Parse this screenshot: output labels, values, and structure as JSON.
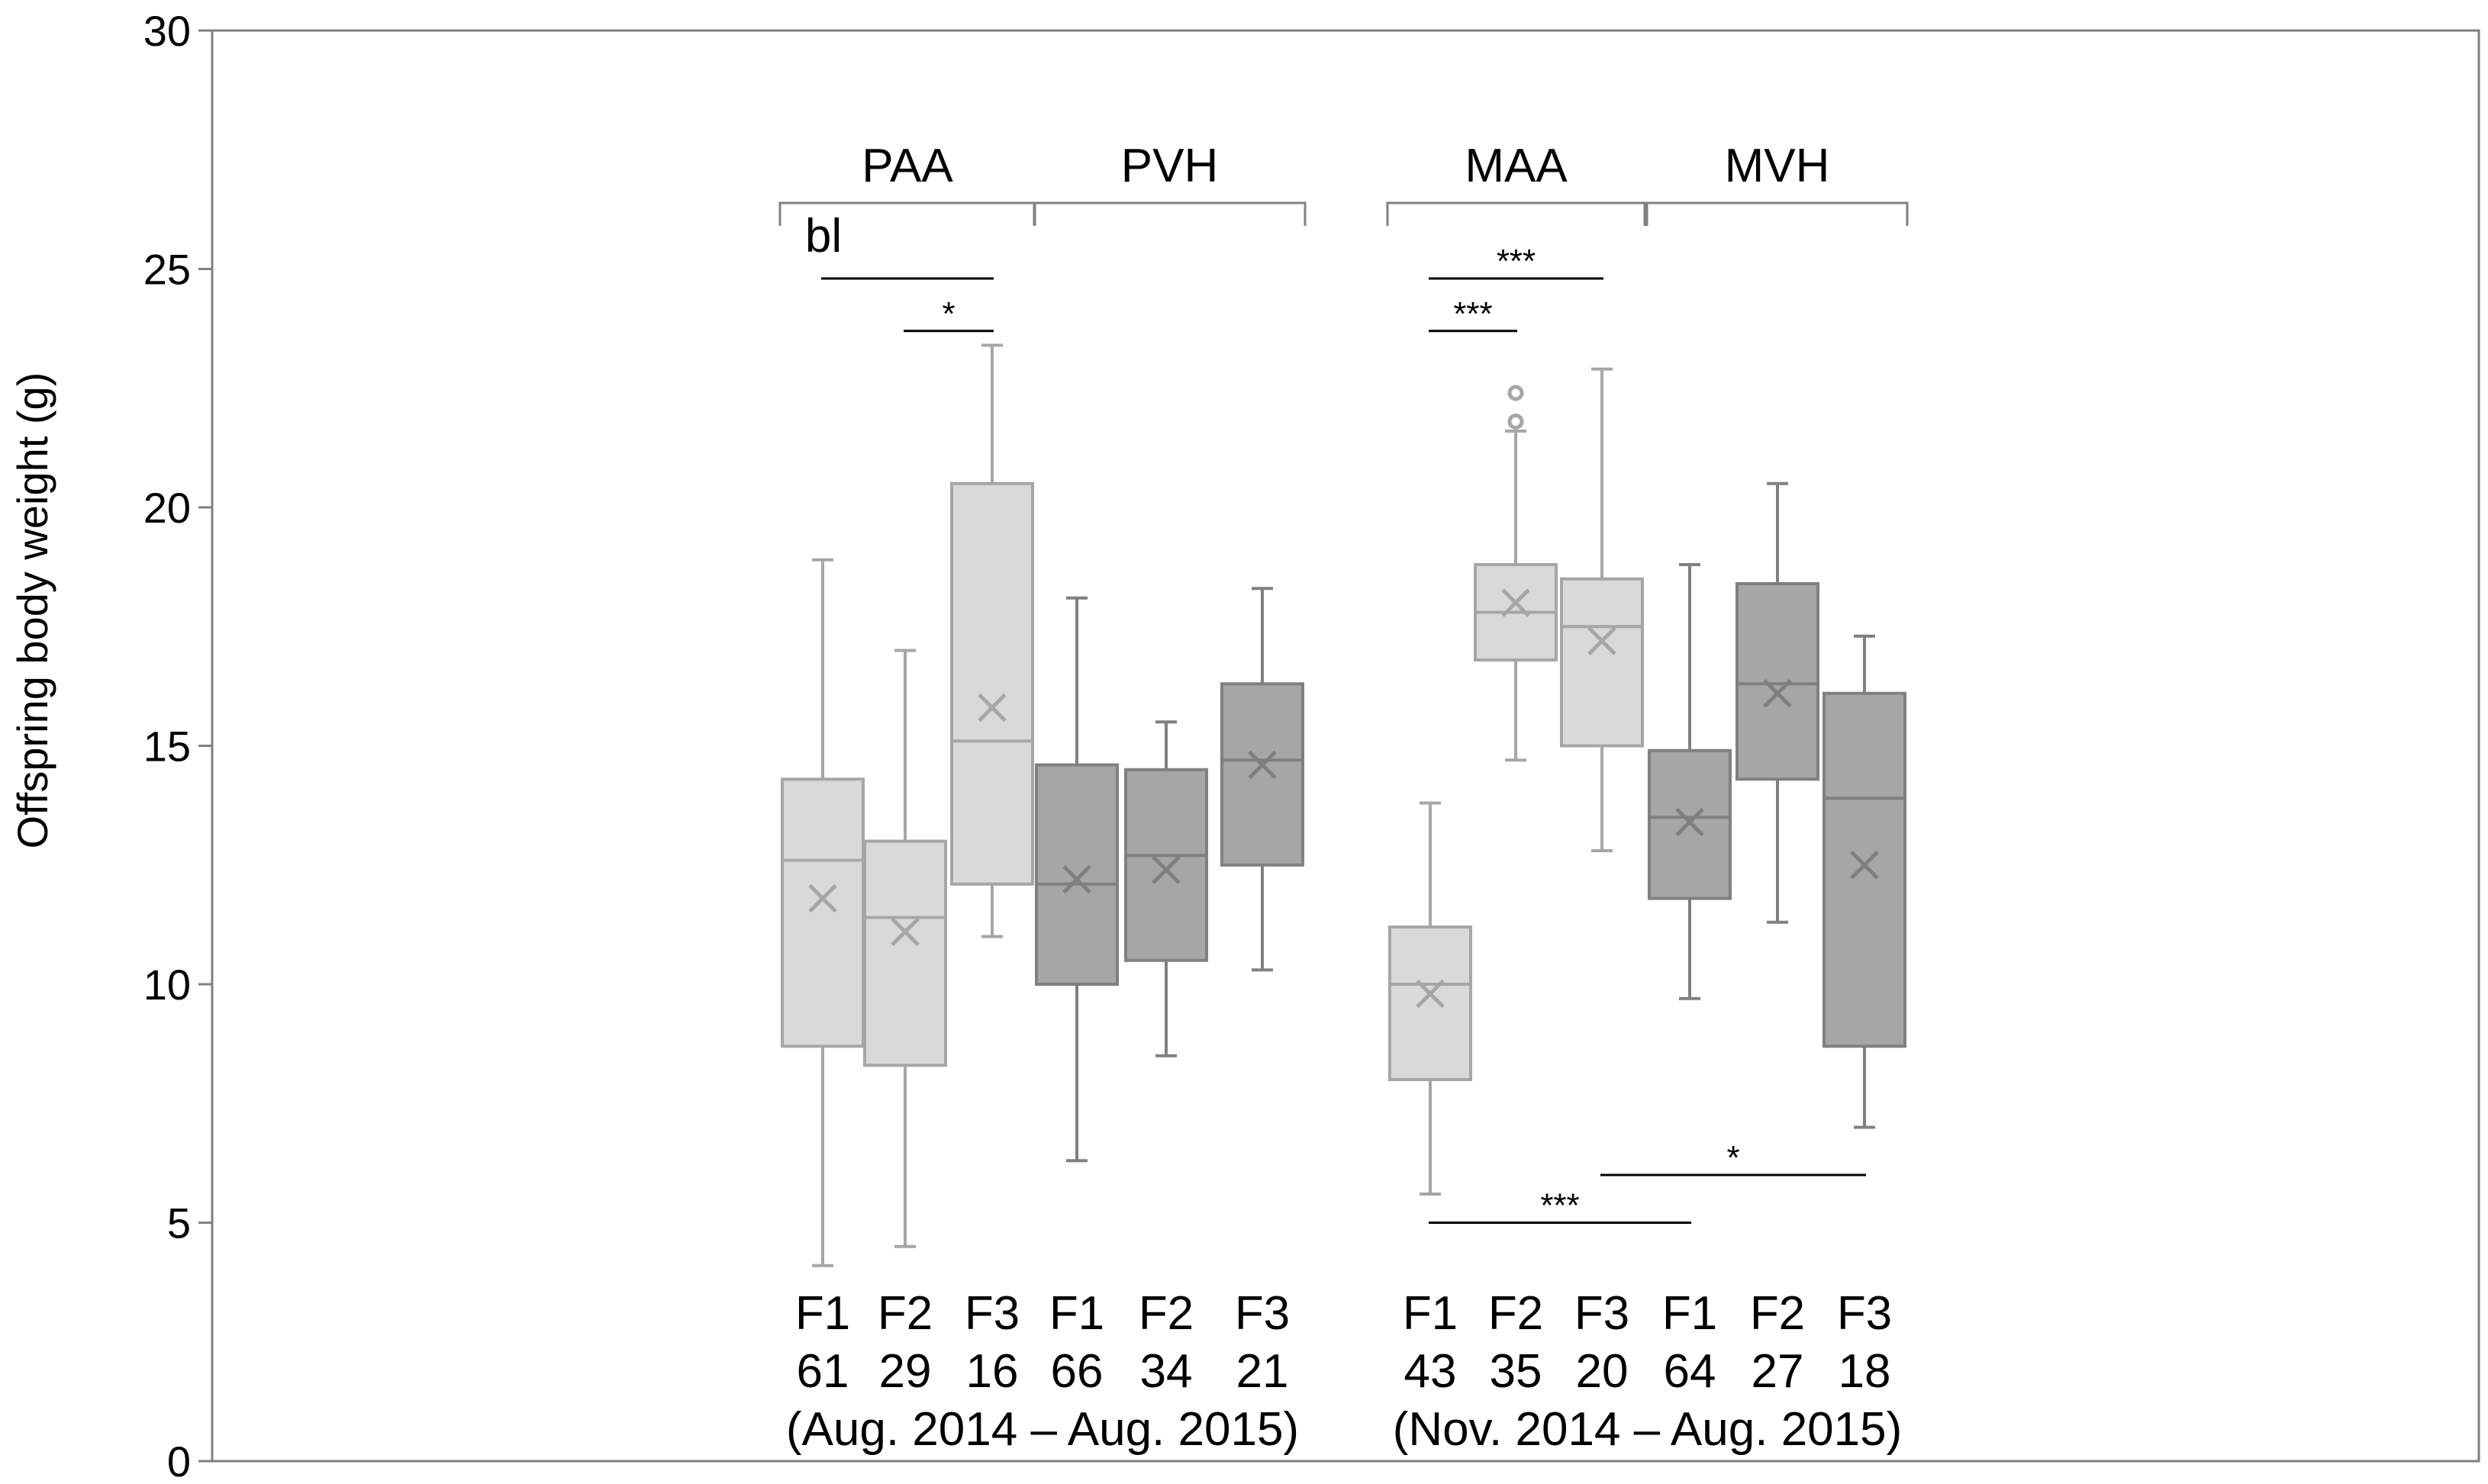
{
  "chart_data": {
    "type": "boxplot",
    "ylabel": "Offspring body weight (g)",
    "ylim": [
      0,
      30
    ],
    "yticks": [
      0,
      5,
      10,
      15,
      20,
      25,
      30
    ],
    "grid": false,
    "colors": {
      "light_fill": "#d9d9d9",
      "light_stroke": "#a6a6a6",
      "light_mark": "#a6a6a6",
      "dark_fill": "#a6a6a6",
      "dark_stroke": "#808080",
      "dark_mark": "#7f7f7f",
      "axis": "#808080",
      "text": "#000000"
    },
    "periods": [
      {
        "label": "(Aug. 2014 – Aug. 2015)",
        "from": 0,
        "to": 5
      },
      {
        "label": "(Nov. 2014 – Aug. 2015)",
        "from": 6,
        "to": 11
      }
    ],
    "groups": [
      {
        "label": "PAA",
        "from": 0,
        "to": 2
      },
      {
        "label": "PVH",
        "from": 3,
        "to": 5
      },
      {
        "label": "MAA",
        "from": 6,
        "to": 8
      },
      {
        "label": "MVH",
        "from": 9,
        "to": 11
      }
    ],
    "boxes": [
      {
        "group": "PAA",
        "gen": "F1",
        "n": "61",
        "shade": "light",
        "min": 4.1,
        "q1": 8.7,
        "median": 12.6,
        "q3": 14.3,
        "max": 18.9,
        "mean": 11.8,
        "outliers": []
      },
      {
        "group": "PAA",
        "gen": "F2",
        "n": "29",
        "shade": "light",
        "min": 4.5,
        "q1": 8.3,
        "median": 11.4,
        "q3": 13.0,
        "max": 17.0,
        "mean": 11.1,
        "outliers": []
      },
      {
        "group": "PAA",
        "gen": "F3",
        "n": "16",
        "shade": "light",
        "min": 11.0,
        "q1": 12.1,
        "median": 15.1,
        "q3": 20.5,
        "max": 23.4,
        "mean": 15.8,
        "outliers": []
      },
      {
        "group": "PVH",
        "gen": "F1",
        "n": "66",
        "shade": "dark",
        "min": 6.3,
        "q1": 10.0,
        "median": 12.1,
        "q3": 14.6,
        "max": 18.1,
        "mean": 12.2,
        "outliers": []
      },
      {
        "group": "PVH",
        "gen": "F2",
        "n": "34",
        "shade": "dark",
        "min": 8.5,
        "q1": 10.5,
        "median": 12.7,
        "q3": 14.5,
        "max": 15.5,
        "mean": 12.4,
        "outliers": []
      },
      {
        "group": "PVH",
        "gen": "F3",
        "n": "21",
        "shade": "dark",
        "min": 10.3,
        "q1": 12.5,
        "median": 14.7,
        "q3": 16.3,
        "max": 18.3,
        "mean": 14.6,
        "outliers": []
      },
      {
        "group": "MAA",
        "gen": "F1",
        "n": "43",
        "shade": "light",
        "min": 5.6,
        "q1": 8.0,
        "median": 10.0,
        "q3": 11.2,
        "max": 13.8,
        "mean": 9.8,
        "outliers": []
      },
      {
        "group": "MAA",
        "gen": "F2",
        "n": "35",
        "shade": "light",
        "min": 14.7,
        "q1": 16.8,
        "median": 17.8,
        "q3": 18.8,
        "max": 21.6,
        "mean": 18.0,
        "outliers": [
          21.8,
          22.4
        ]
      },
      {
        "group": "MAA",
        "gen": "F3",
        "n": "20",
        "shade": "light",
        "min": 12.8,
        "q1": 15.0,
        "median": 17.5,
        "q3": 18.5,
        "max": 22.9,
        "mean": 17.2,
        "outliers": []
      },
      {
        "group": "MVH",
        "gen": "F1",
        "n": "64",
        "shade": "dark",
        "min": 9.7,
        "q1": 11.8,
        "median": 13.5,
        "q3": 14.9,
        "max": 18.8,
        "mean": 13.4,
        "outliers": []
      },
      {
        "group": "MVH",
        "gen": "F2",
        "n": "27",
        "shade": "dark",
        "min": 11.3,
        "q1": 14.3,
        "median": 16.3,
        "q3": 18.4,
        "max": 20.5,
        "mean": 16.1,
        "outliers": []
      },
      {
        "group": "MVH",
        "gen": "F3",
        "n": "18",
        "shade": "dark",
        "min": 7.0,
        "q1": 8.7,
        "median": 13.9,
        "q3": 16.1,
        "max": 17.3,
        "mean": 12.5,
        "outliers": []
      }
    ],
    "significance": [
      {
        "label": "",
        "from": 0,
        "to": 2,
        "y": 24.8
      },
      {
        "label": "*",
        "from": 1,
        "to": 2,
        "y": 23.7
      },
      {
        "label": "***",
        "from": 6,
        "to": 8,
        "y": 24.8
      },
      {
        "label": "***",
        "from": 6,
        "to": 7,
        "y": 23.7
      },
      {
        "label": "*",
        "from": 8,
        "to": 11,
        "y": 6.0
      },
      {
        "label": "***",
        "from": 6,
        "to": 9,
        "y": 5.0
      }
    ],
    "annotation": {
      "label": "bl",
      "from": 0,
      "to": 2
    }
  }
}
